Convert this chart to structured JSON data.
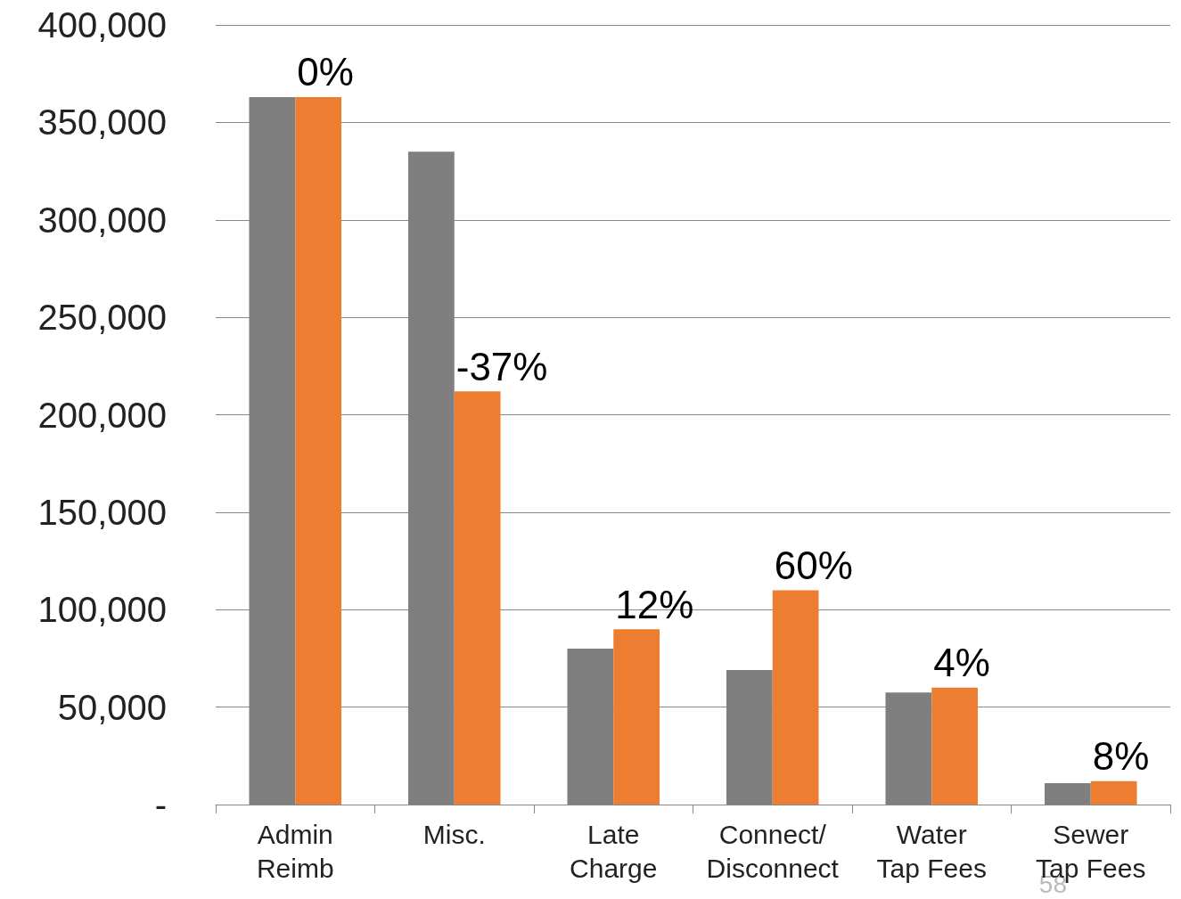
{
  "chart_data": {
    "type": "bar",
    "categories": [
      "Admin\nReimb",
      "Misc.",
      "Late\nCharge",
      "Connect/\nDisconnect",
      "Water\nTap Fees",
      "Sewer\nTap Fees"
    ],
    "series": [
      {
        "color": "#7f7f7f",
        "values": [
          363000,
          335000,
          80000,
          69000,
          57500,
          11000
        ]
      },
      {
        "color": "#ed7d31",
        "values": [
          363000,
          212000,
          90000,
          110000,
          60000,
          12000
        ]
      }
    ],
    "ylim": [
      0,
      400000
    ],
    "yticks": [
      {
        "value": 0,
        "label": "-"
      },
      {
        "value": 50000,
        "label": "50,000"
      },
      {
        "value": 100000,
        "label": "100,000"
      },
      {
        "value": 150000,
        "label": "150,000"
      },
      {
        "value": 200000,
        "label": "200,000"
      },
      {
        "value": 250000,
        "label": "250,000"
      },
      {
        "value": 300000,
        "label": "300,000"
      },
      {
        "value": 350000,
        "label": "350,000"
      },
      {
        "value": 400000,
        "label": "400,000"
      }
    ],
    "grid": "y",
    "annotations": [
      {
        "text": "0%",
        "x": "Admin\nReimb",
        "y": 363000
      },
      {
        "text": "-37%",
        "x": "Misc.",
        "y": 212000
      },
      {
        "text": "12%",
        "x": "Late\nCharge",
        "y": 90000
      },
      {
        "text": "60%",
        "x": "Connect/\nDisconnect",
        "y": 110000
      },
      {
        "text": "4%",
        "x": "Water\nTap Fees",
        "y": 60000
      },
      {
        "text": "8%",
        "x": "Sewer\nTap Fees",
        "y": 12000
      },
      "58"
    ]
  }
}
